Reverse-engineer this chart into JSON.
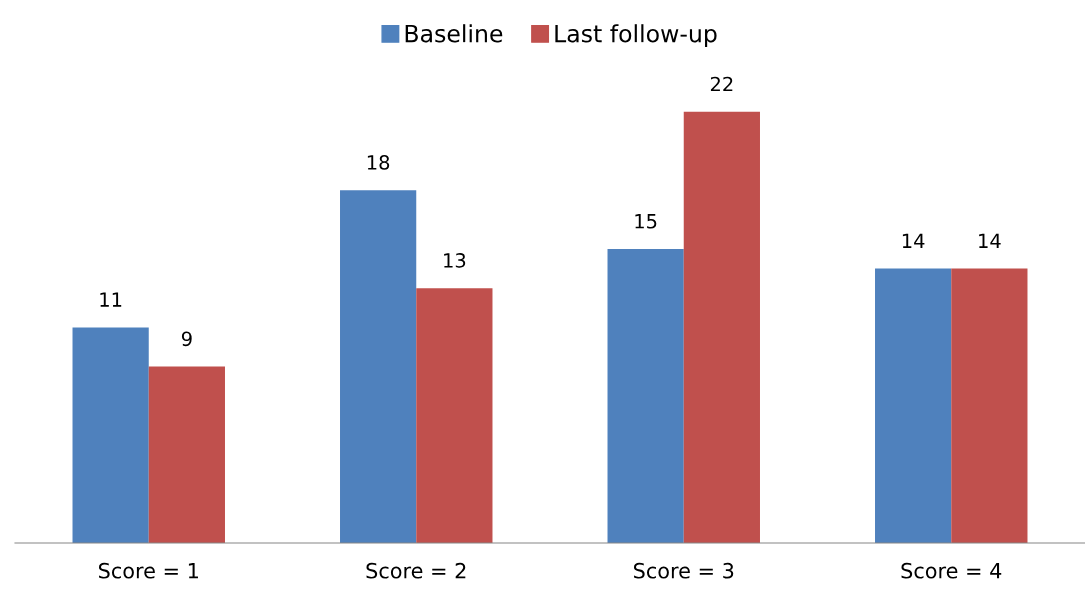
{
  "chart_data": {
    "type": "bar",
    "categories": [
      "Score = 1",
      "Score = 2",
      "Score = 3",
      "Score = 4"
    ],
    "series": [
      {
        "name": "Baseline",
        "color": "#4f81bd",
        "values": [
          11,
          18,
          15,
          14
        ]
      },
      {
        "name": "Last follow-up",
        "color": "#c0504d",
        "values": [
          9,
          13,
          22,
          14
        ]
      }
    ],
    "data_labels": true,
    "legend": "top",
    "grid": false,
    "tick_labels": "x"
  }
}
